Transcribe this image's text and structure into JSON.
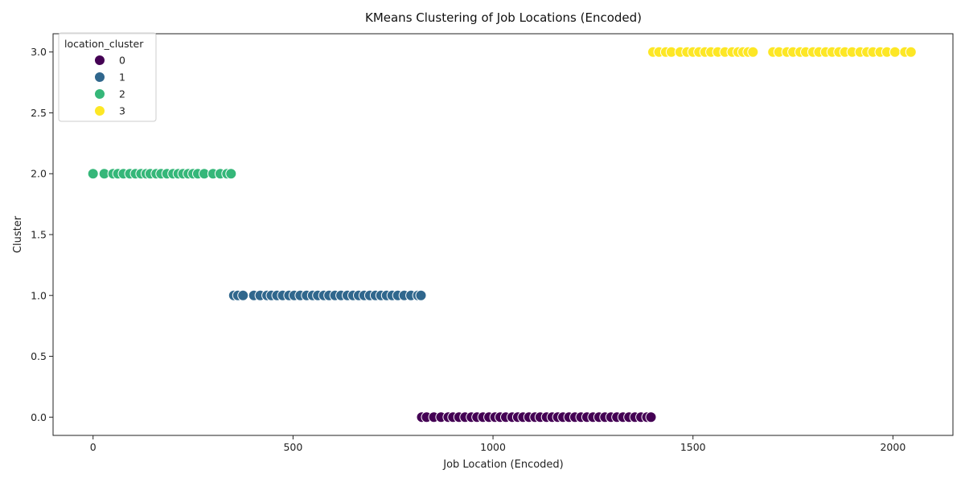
{
  "chart_data": {
    "type": "scatter",
    "title": "KMeans Clustering of Job Locations (Encoded)",
    "xlabel": "Job Location (Encoded)",
    "ylabel": "Cluster",
    "xlim": [
      -100,
      2150
    ],
    "ylim": [
      -0.15,
      3.15
    ],
    "xticks": [
      0,
      500,
      1000,
      1500,
      2000
    ],
    "yticks": [
      0.0,
      0.5,
      1.0,
      1.5,
      2.0,
      2.5,
      3.0
    ],
    "xtick_labels": [
      "0",
      "500",
      "1000",
      "1500",
      "2000"
    ],
    "ytick_labels": [
      "0.0",
      "0.5",
      "1.0",
      "1.5",
      "2.0",
      "2.5",
      "3.0"
    ],
    "grid": false,
    "legend": {
      "title": "location_cluster",
      "placement": "top-left",
      "entries": [
        "0",
        "1",
        "2",
        "3"
      ]
    },
    "series": [
      {
        "name": "0",
        "color": "#440154",
        "y": 0,
        "x": [
          822,
          834,
          852,
          870,
          888,
          900,
          915,
          930,
          946,
          960,
          975,
          990,
          1005,
          1018,
          1032,
          1048,
          1062,
          1075,
          1090,
          1105,
          1118,
          1134,
          1148,
          1162,
          1175,
          1190,
          1205,
          1220,
          1235,
          1250,
          1265,
          1280,
          1295,
          1310,
          1325,
          1340,
          1355,
          1370,
          1385,
          1395
        ]
      },
      {
        "name": "1",
        "color": "#30678d",
        "y": 1,
        "x": [
          352,
          362,
          375,
          402,
          418,
          435,
          446,
          460,
          474,
          490,
          503,
          518,
          534,
          549,
          562,
          577,
          590,
          605,
          620,
          636,
          650,
          664,
          678,
          692,
          706,
          720,
          734,
          748,
          762,
          778,
          795,
          812,
          820
        ]
      },
      {
        "name": "2",
        "color": "#35b779",
        "y": 2,
        "x": [
          0,
          28,
          50,
          62,
          76,
          92,
          106,
          120,
          133,
          143,
          158,
          170,
          185,
          200,
          213,
          225,
          238,
          250,
          262,
          278,
          300,
          318,
          335,
          345
        ]
      },
      {
        "name": "3",
        "color": "#fde725",
        "y": 3,
        "x": [
          1400,
          1415,
          1432,
          1446,
          1468,
          1485,
          1500,
          1515,
          1530,
          1545,
          1562,
          1580,
          1598,
          1613,
          1625,
          1638,
          1650,
          1700,
          1715,
          1735,
          1750,
          1768,
          1782,
          1800,
          1815,
          1832,
          1848,
          1865,
          1880,
          1898,
          1918,
          1935,
          1950,
          1968,
          1985,
          2005,
          2030,
          2045
        ]
      }
    ]
  }
}
